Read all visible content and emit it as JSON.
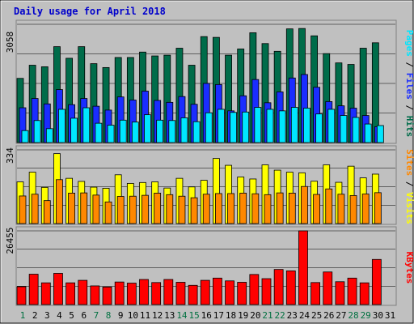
{
  "chart_data": {
    "type": "bar",
    "title": "Daily usage for April 2018",
    "categories": [
      "1",
      "2",
      "3",
      "4",
      "5",
      "6",
      "7",
      "8",
      "9",
      "10",
      "11",
      "12",
      "13",
      "14",
      "15",
      "16",
      "17",
      "18",
      "19",
      "20",
      "21",
      "22",
      "23",
      "24",
      "25",
      "26",
      "27",
      "28",
      "29",
      "30",
      "31"
    ],
    "weekend_days": [
      "1",
      "7",
      "8",
      "14",
      "15",
      "21",
      "22",
      "28",
      "29"
    ],
    "colors": {
      "title": "#0000cc",
      "frame_bg": "#c0c0c0",
      "plot_bg": "#c0c0c0",
      "hits": "#006c4a",
      "files": "#1a2dff",
      "pages": "#00e6ff",
      "visits": "#ffff00",
      "sites": "#ff8800",
      "kbytes": "#ff0000",
      "weekday_label": "#000000",
      "weekend_label": "#007040"
    },
    "panels": [
      {
        "id": "hits-files-pages",
        "ymax": 3058,
        "ymax_label": "3058",
        "legend": [
          "Pages",
          "/",
          "Files",
          "/",
          "Hits"
        ],
        "legend_colors": [
          "#00e6ff",
          "#000000",
          "#1a2dff",
          "#000000",
          "#006c4a"
        ],
        "series": [
          {
            "name": "Hits",
            "values": [
              1660,
              2000,
              1960,
              2480,
              2180,
              2480,
              2040,
              1940,
              2200,
              2200,
              2340,
              2240,
              2260,
              2440,
              2000,
              2740,
              2720,
              2260,
              2420,
              2840,
              2560,
              2360,
              2940,
              2950,
              2760,
              2300,
              2060,
              2020,
              2440,
              2580,
              null
            ]
          },
          {
            "name": "Files",
            "values": [
              900,
              1140,
              1000,
              1370,
              980,
              1140,
              940,
              840,
              1180,
              1100,
              1330,
              1090,
              1040,
              1190,
              990,
              1530,
              1500,
              820,
              1210,
              1630,
              1030,
              1310,
              1670,
              1760,
              1430,
              1060,
              950,
              890,
              700,
              410,
              null
            ]
          },
          {
            "name": "Pages",
            "values": [
              310,
              570,
              360,
              860,
              630,
              900,
              500,
              450,
              580,
              530,
              720,
              580,
              570,
              640,
              540,
              770,
              860,
              780,
              790,
              910,
              860,
              820,
              910,
              890,
              740,
              860,
              700,
              650,
              480,
              440,
              null
            ]
          }
        ]
      },
      {
        "id": "visits-sites",
        "ymax": 334,
        "ymax_label": "334",
        "legend": [
          "Sites",
          "/",
          "Visits"
        ],
        "legend_colors": [
          "#ff8800",
          "#000000",
          "#ffff00"
        ],
        "series": [
          {
            "name": "Visits",
            "values": [
              189,
              233,
              164,
              317,
              205,
              191,
              165,
              160,
              221,
              182,
              186,
              189,
              161,
              205,
              166,
              196,
              295,
              264,
              211,
              202,
              266,
              242,
              233,
              230,
              192,
              266,
              187,
              260,
              207,
              224,
              null
            ]
          },
          {
            "name": "Sites",
            "values": [
              125,
              133,
              104,
              199,
              138,
              139,
              129,
              98,
              123,
              124,
              128,
              138,
              131,
              124,
              117,
              133,
              136,
              136,
              138,
              135,
              131,
              139,
              138,
              168,
              132,
              157,
              133,
              127,
              134,
              140,
              null
            ]
          }
        ]
      },
      {
        "id": "kbytes",
        "ymax": 26455,
        "ymax_label": "26455",
        "legend": [
          "KBytes"
        ],
        "legend_colors": [
          "#ff0000"
        ],
        "series": [
          {
            "name": "KBytes",
            "values": [
              6400,
              10900,
              7800,
              11200,
              7800,
              8700,
              6700,
              6300,
              8100,
              7700,
              9000,
              7900,
              9000,
              8000,
              6900,
              8700,
              9500,
              8500,
              8000,
              10800,
              9300,
              12600,
              12100,
              26455,
              7900,
              11700,
              8200,
              9500,
              7800,
              16200,
              null
            ]
          }
        ]
      }
    ]
  }
}
